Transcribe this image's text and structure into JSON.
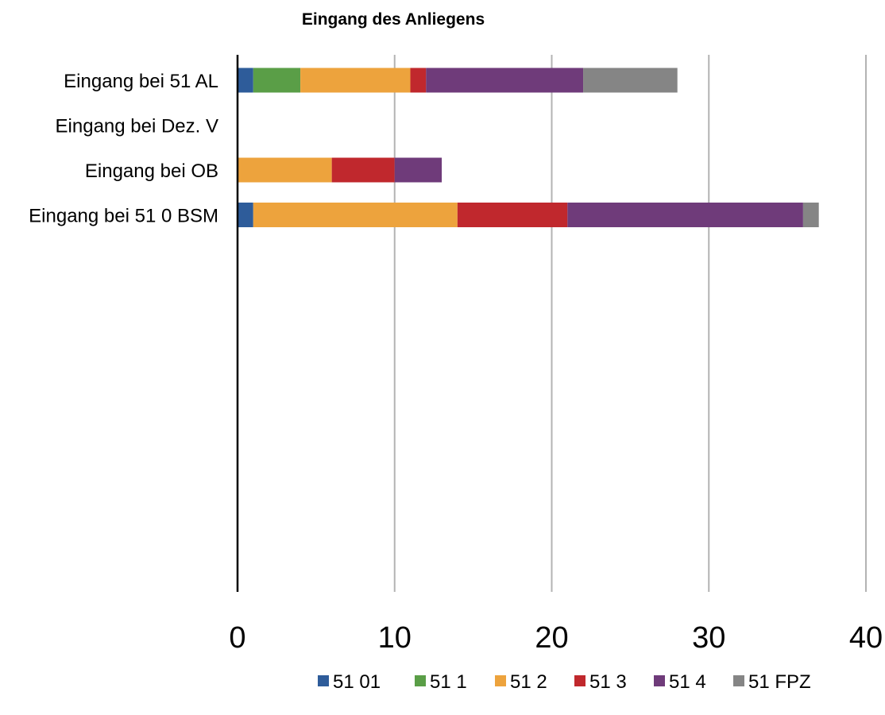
{
  "chart_data": {
    "type": "bar",
    "orientation": "horizontal",
    "stacked": true,
    "title": "Eingang des Anliegens",
    "xlabel": "",
    "ylabel": "",
    "xlim": [
      0,
      40
    ],
    "x_ticks": [
      "0",
      "10",
      "20",
      "30",
      "40"
    ],
    "grid": true,
    "legend_position": "bottom",
    "categories": [
      "Eingang bei 51 AL",
      "Eingang bei Dez. V",
      "Eingang bei OB",
      "Eingang bei 51 0 BSM"
    ],
    "series": [
      {
        "name": "51 01",
        "color": "#2e5c9a",
        "values": [
          1,
          0,
          0,
          1
        ]
      },
      {
        "name": "51 1",
        "color": "#5a9e47",
        "values": [
          3,
          0,
          0,
          0
        ]
      },
      {
        "name": "51 2",
        "color": "#eda33d",
        "values": [
          7,
          0,
          6,
          13
        ]
      },
      {
        "name": "51 3",
        "color": "#c0282d",
        "values": [
          1,
          0,
          4,
          7
        ]
      },
      {
        "name": "51 4",
        "color": "#6f3b7a",
        "values": [
          10,
          0,
          3,
          15
        ]
      },
      {
        "name": "51 FPZ",
        "color": "#858585",
        "values": [
          6,
          0,
          0,
          1
        ]
      }
    ]
  }
}
